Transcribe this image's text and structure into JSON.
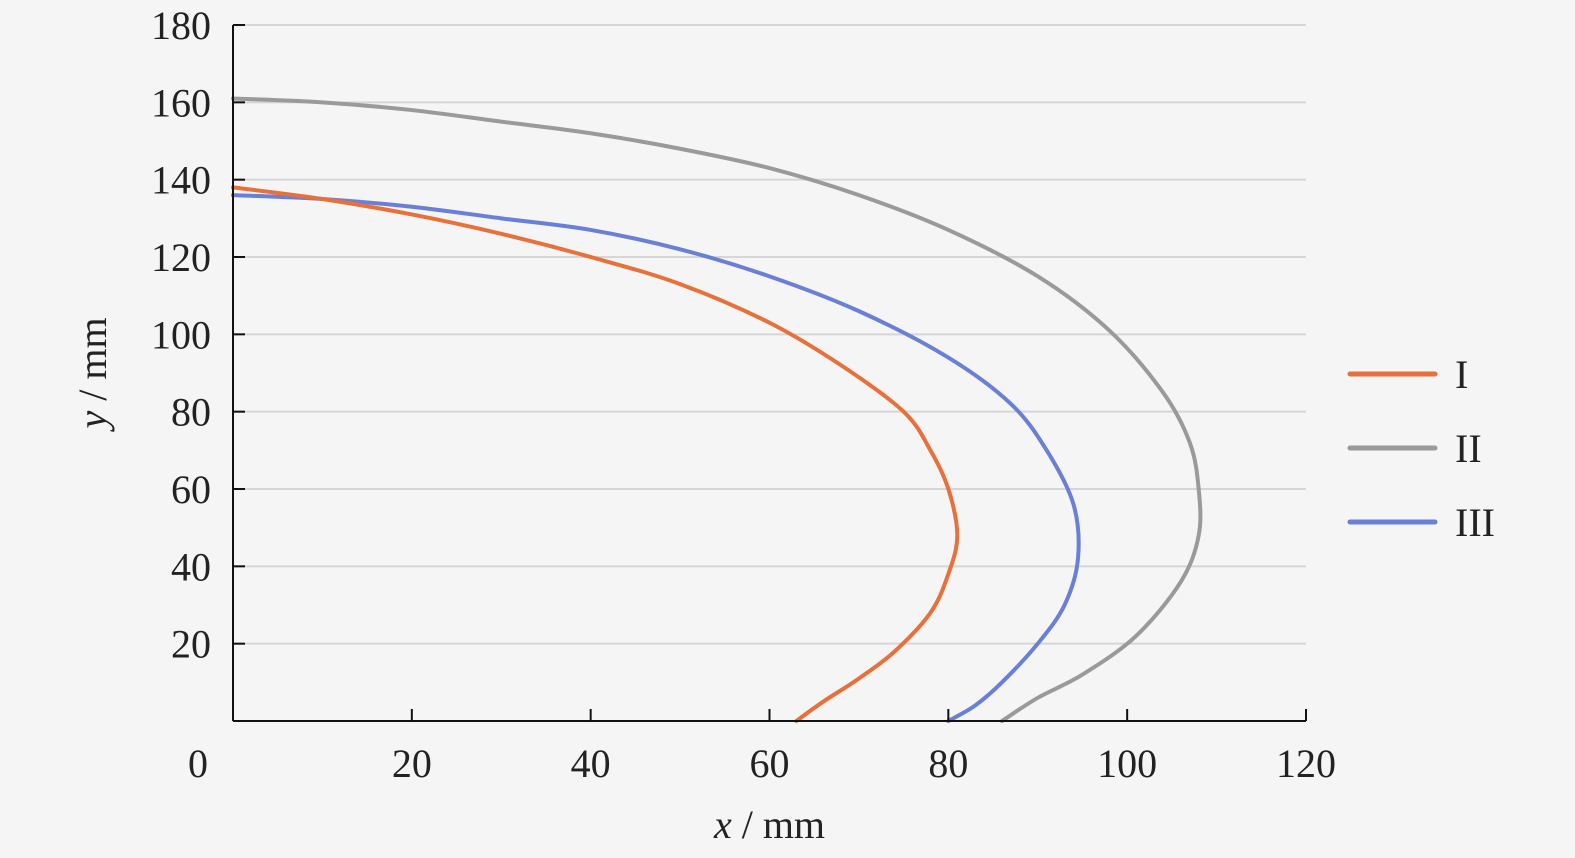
{
  "chart_data": {
    "type": "line",
    "title": "",
    "xlabel_var": "x",
    "xlabel_unit": " / mm",
    "ylabel_var": "y",
    "ylabel_unit": " / mm",
    "xlim": [
      0,
      120
    ],
    "ylim": [
      0,
      180
    ],
    "xticks": [
      0,
      20,
      40,
      60,
      80,
      100,
      120
    ],
    "yticks": [
      20,
      40,
      60,
      80,
      100,
      120,
      140,
      160,
      180
    ],
    "grid": "horizontal",
    "legend_position": "right",
    "series": [
      {
        "name": "I",
        "color": "#e8703a",
        "points": [
          [
            0,
            138
          ],
          [
            10,
            135
          ],
          [
            20,
            131
          ],
          [
            30,
            126
          ],
          [
            40,
            120
          ],
          [
            50,
            113
          ],
          [
            60,
            103
          ],
          [
            68,
            92
          ],
          [
            75,
            80
          ],
          [
            78,
            70
          ],
          [
            80,
            60
          ],
          [
            81,
            48
          ],
          [
            80,
            38
          ],
          [
            78,
            28
          ],
          [
            74,
            18
          ],
          [
            70,
            11
          ],
          [
            66,
            5
          ],
          [
            63,
            0
          ]
        ]
      },
      {
        "name": "II",
        "color": "#9a9a9a",
        "points": [
          [
            0,
            161
          ],
          [
            10,
            160
          ],
          [
            20,
            158
          ],
          [
            30,
            155
          ],
          [
            40,
            152
          ],
          [
            50,
            148
          ],
          [
            60,
            143
          ],
          [
            70,
            136
          ],
          [
            80,
            127
          ],
          [
            90,
            115
          ],
          [
            98,
            101
          ],
          [
            104,
            85
          ],
          [
            107,
            72
          ],
          [
            108,
            60
          ],
          [
            108,
            48
          ],
          [
            106,
            36
          ],
          [
            101,
            22
          ],
          [
            95,
            12
          ],
          [
            90,
            6
          ],
          [
            86,
            0
          ]
        ]
      },
      {
        "name": "III",
        "color": "#6a7fd6",
        "points": [
          [
            0,
            136
          ],
          [
            10,
            135
          ],
          [
            20,
            133
          ],
          [
            30,
            130
          ],
          [
            40,
            127
          ],
          [
            50,
            122
          ],
          [
            60,
            115
          ],
          [
            70,
            106
          ],
          [
            80,
            94
          ],
          [
            87,
            82
          ],
          [
            91,
            70
          ],
          [
            94,
            56
          ],
          [
            94.5,
            42
          ],
          [
            93,
            30
          ],
          [
            90,
            20
          ],
          [
            86,
            10
          ],
          [
            83,
            4
          ],
          [
            80,
            0
          ]
        ]
      }
    ]
  }
}
